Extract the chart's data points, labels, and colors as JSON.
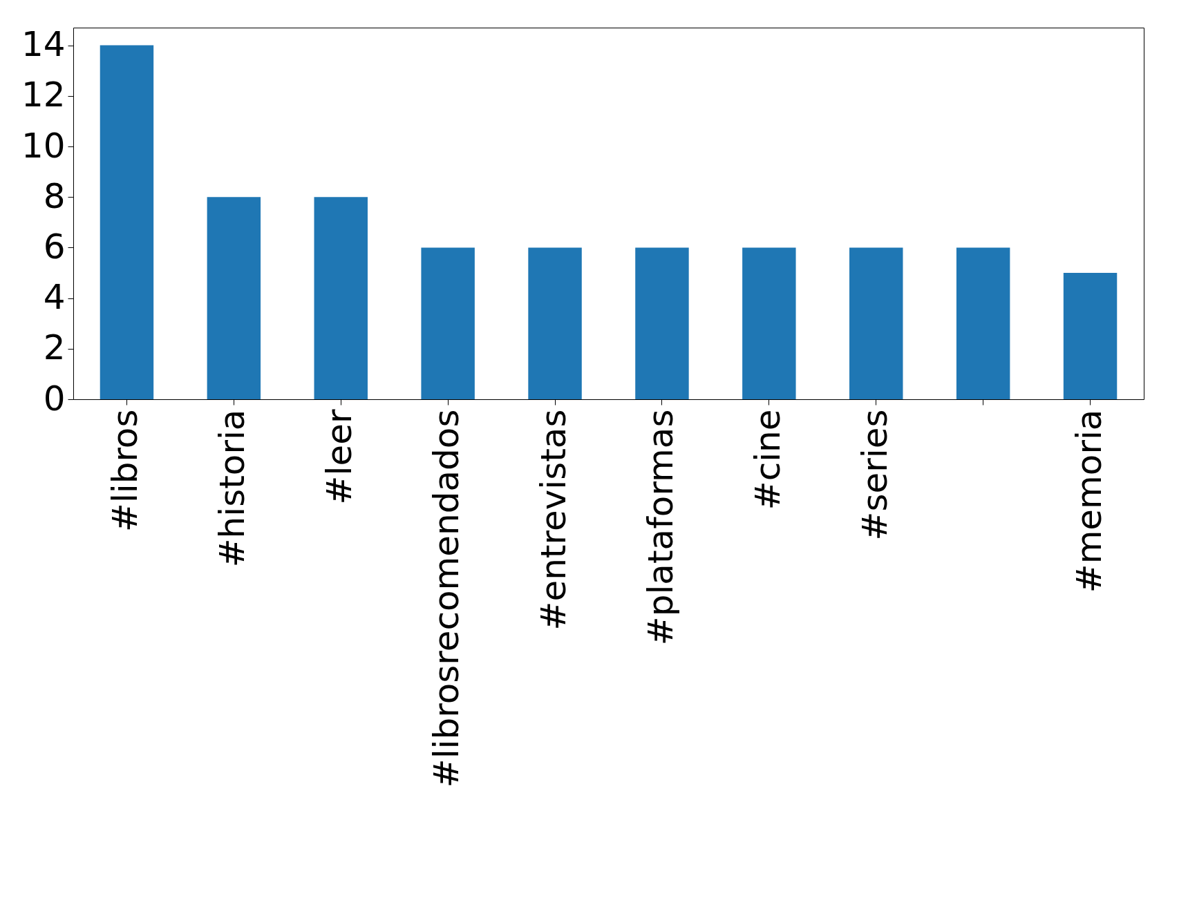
{
  "chart_data": {
    "type": "bar",
    "categories": [
      "#libros",
      "#historia",
      "#leer",
      "#librosrecomendados",
      "#entrevistas",
      "#plataformas",
      "#cine",
      "#series",
      null,
      "#memoria"
    ],
    "values": [
      14,
      8,
      8,
      6,
      6,
      6,
      6,
      6,
      6,
      5
    ],
    "color": "#1f77b4",
    "ylim": [
      0,
      14.7
    ],
    "yticks": [
      0,
      2,
      4,
      6,
      8,
      10,
      12,
      14
    ],
    "grid": false
  }
}
